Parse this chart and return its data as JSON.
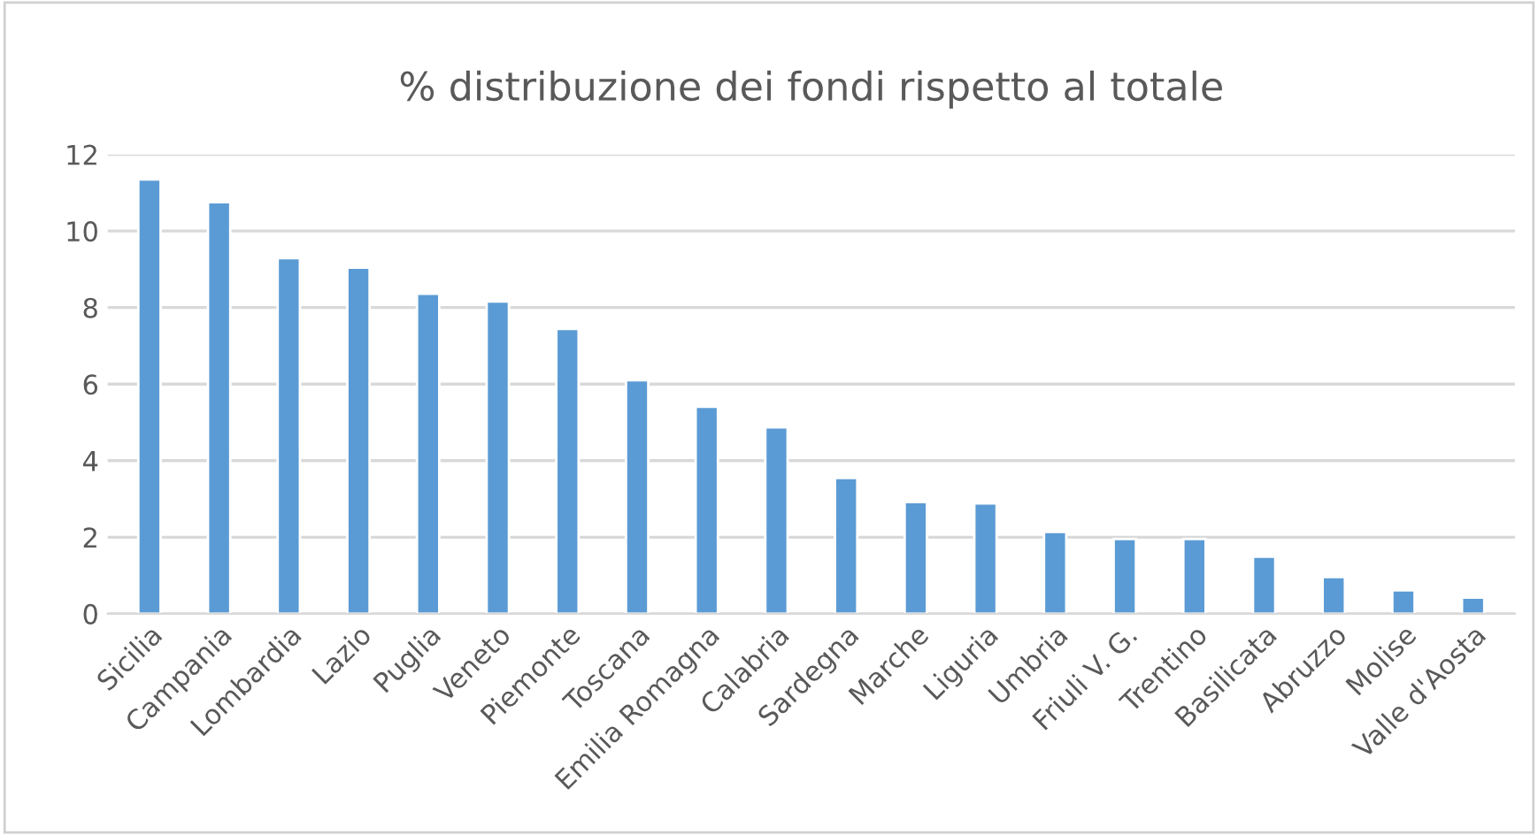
{
  "chart_data": {
    "type": "bar",
    "title": "% distribuzione dei fondi rispetto al totale",
    "categories": [
      "Sicilia",
      "Campania",
      "Lombardia",
      "Lazio",
      "Puglia",
      "Veneto",
      "Piemonte",
      "Toscana",
      "Emilia Romagna",
      "Calabria",
      "Sardegna",
      "Marche",
      "Liguria",
      "Umbria",
      "Friuli V. G.",
      "Trentino",
      "Basilicata",
      "Abruzzo",
      "Molise",
      "Valle d'Aosta"
    ],
    "values": [
      11.35,
      10.75,
      9.29,
      9.04,
      8.36,
      8.16,
      7.44,
      6.1,
      5.41,
      4.87,
      3.55,
      2.92,
      2.88,
      2.14,
      1.95,
      1.95,
      1.49,
      0.96,
      0.61,
      0.42
    ],
    "color": "#5b9bd5",
    "ylim": [
      0,
      12
    ],
    "yticks": [
      0,
      2,
      4,
      6,
      8,
      10,
      12
    ],
    "grid": "y"
  }
}
